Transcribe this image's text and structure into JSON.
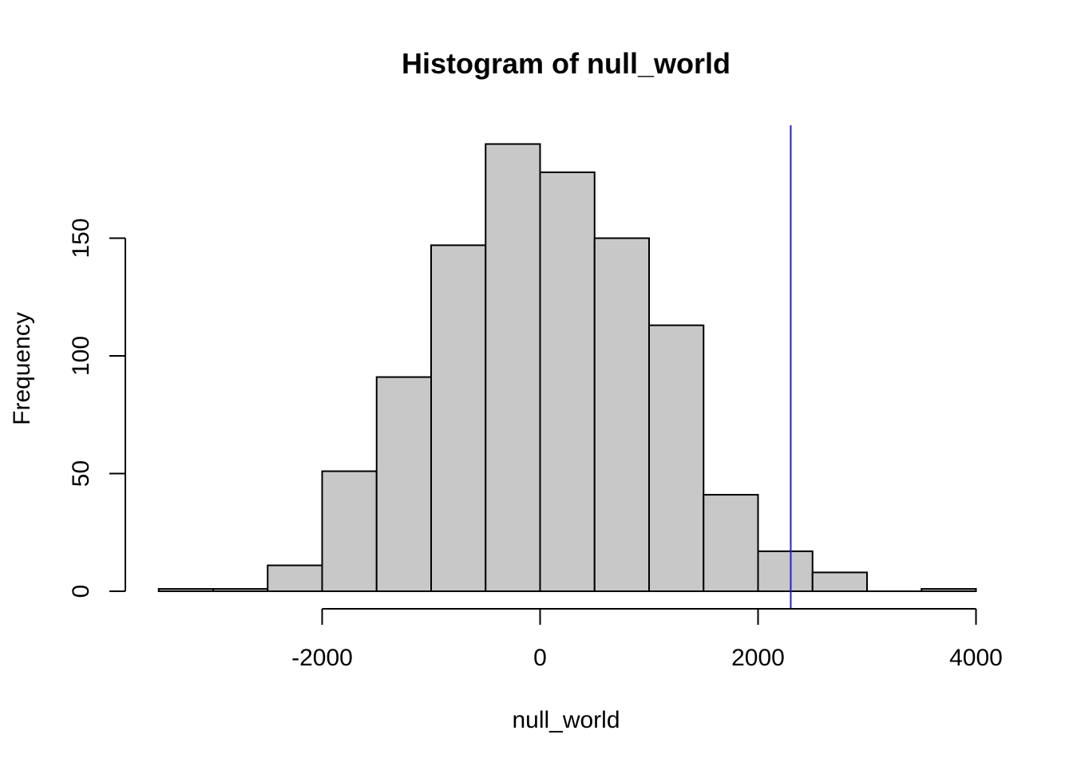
{
  "chart_data": {
    "type": "bar",
    "title": "Histogram of null_world",
    "xlabel": "null_world",
    "ylabel": "Frequency",
    "bins": [
      {
        "x0": -3500,
        "x1": -3000,
        "count": 1
      },
      {
        "x0": -3000,
        "x1": -2500,
        "count": 1
      },
      {
        "x0": -2500,
        "x1": -2000,
        "count": 11
      },
      {
        "x0": -2000,
        "x1": -1500,
        "count": 51
      },
      {
        "x0": -1500,
        "x1": -1000,
        "count": 91
      },
      {
        "x0": -1000,
        "x1": -500,
        "count": 147
      },
      {
        "x0": -500,
        "x1": 0,
        "count": 190
      },
      {
        "x0": 0,
        "x1": 500,
        "count": 178
      },
      {
        "x0": 500,
        "x1": 1000,
        "count": 150
      },
      {
        "x0": 1000,
        "x1": 1500,
        "count": 113
      },
      {
        "x0": 1500,
        "x1": 2000,
        "count": 41
      },
      {
        "x0": 2000,
        "x1": 2500,
        "count": 17
      },
      {
        "x0": 2500,
        "x1": 3000,
        "count": 8
      },
      {
        "x0": 3000,
        "x1": 3500,
        "count": 0
      },
      {
        "x0": 3500,
        "x1": 4000,
        "count": 1
      }
    ],
    "xlim": [
      -3500,
      4000
    ],
    "ylim": [
      0,
      190
    ],
    "x_ticks": [
      -2000,
      0,
      2000,
      4000
    ],
    "x_tick_labels": [
      "-2000",
      "0",
      "2000",
      "4000"
    ],
    "y_ticks": [
      0,
      50,
      100,
      150
    ],
    "y_tick_labels": [
      "0",
      "50",
      "100",
      "150"
    ],
    "reference_line": {
      "x": 2300,
      "color": "#2121d6"
    },
    "bar_color": "#c8c8c8",
    "grid": false,
    "legend": "none"
  }
}
